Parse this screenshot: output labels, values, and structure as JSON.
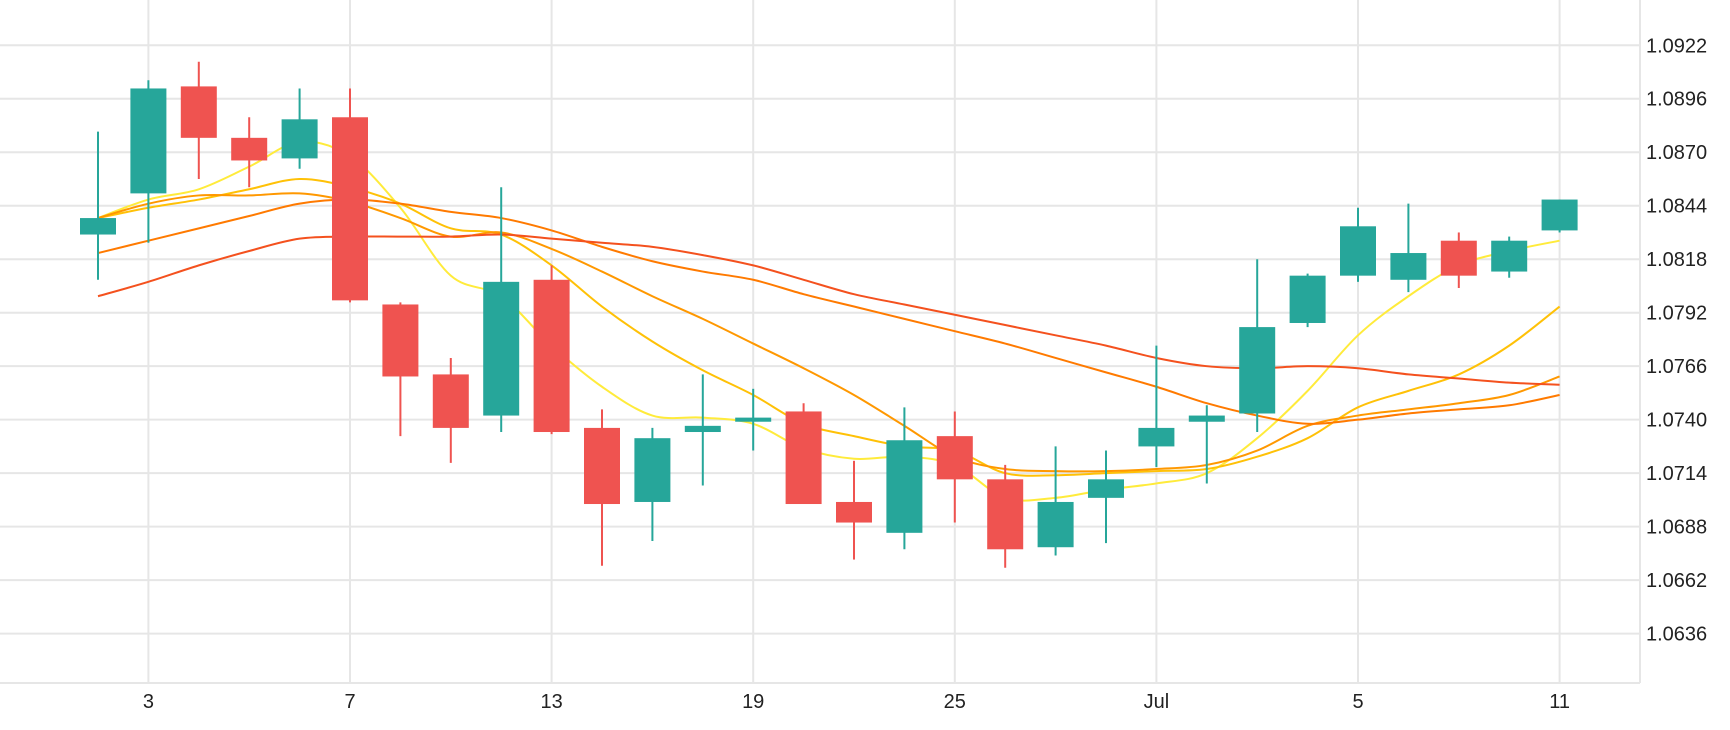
{
  "chart_data": {
    "type": "candlestick",
    "x_tick_labels": [
      "3",
      "7",
      "13",
      "19",
      "25",
      "Jul",
      "5",
      "11"
    ],
    "y_tick_labels": [
      "1.0922",
      "1.0896",
      "1.0870",
      "1.0844",
      "1.0818",
      "1.0792",
      "1.0766",
      "1.0740",
      "1.0714",
      "1.0688",
      "1.0662",
      "1.0636"
    ],
    "ylim": [
      1.0612,
      1.0944
    ],
    "grid": true,
    "colors": {
      "up": "#26a69a",
      "down": "#ef5350",
      "grid": "#e6e6e6",
      "text": "#222222"
    },
    "candles": [
      {
        "open": 1.083,
        "high": 1.088,
        "low": 1.0808,
        "close": 1.0838
      },
      {
        "open": 1.085,
        "high": 1.0905,
        "low": 1.0826,
        "close": 1.0901
      },
      {
        "open": 1.0902,
        "high": 1.0914,
        "low": 1.0857,
        "close": 1.0877
      },
      {
        "open": 1.0877,
        "high": 1.0887,
        "low": 1.0853,
        "close": 1.0866
      },
      {
        "open": 1.0867,
        "high": 1.0901,
        "low": 1.0862,
        "close": 1.0886
      },
      {
        "open": 1.0887,
        "high": 1.0901,
        "low": 1.0797,
        "close": 1.0798
      },
      {
        "open": 1.0796,
        "high": 1.0797,
        "low": 1.0732,
        "close": 1.0761
      },
      {
        "open": 1.0762,
        "high": 1.077,
        "low": 1.0719,
        "close": 1.0736
      },
      {
        "open": 1.0742,
        "high": 1.0853,
        "low": 1.0734,
        "close": 1.0807
      },
      {
        "open": 1.0808,
        "high": 1.0815,
        "low": 1.0733,
        "close": 1.0734
      },
      {
        "open": 1.0736,
        "high": 1.0745,
        "low": 1.0669,
        "close": 1.0699
      },
      {
        "open": 1.07,
        "high": 1.0736,
        "low": 1.0681,
        "close": 1.0731
      },
      {
        "open": 1.0734,
        "high": 1.0762,
        "low": 1.0708,
        "close": 1.0737
      },
      {
        "open": 1.0739,
        "high": 1.0755,
        "low": 1.0725,
        "close": 1.0741
      },
      {
        "open": 1.0744,
        "high": 1.0748,
        "low": 1.07,
        "close": 1.0699
      },
      {
        "open": 1.07,
        "high": 1.072,
        "low": 1.0672,
        "close": 1.069
      },
      {
        "open": 1.0685,
        "high": 1.0746,
        "low": 1.0677,
        "close": 1.073
      },
      {
        "open": 1.0732,
        "high": 1.0744,
        "low": 1.069,
        "close": 1.0711
      },
      {
        "open": 1.0711,
        "high": 1.0718,
        "low": 1.0668,
        "close": 1.0677
      },
      {
        "open": 1.0678,
        "high": 1.0727,
        "low": 1.0674,
        "close": 1.07
      },
      {
        "open": 1.0702,
        "high": 1.0725,
        "low": 1.068,
        "close": 1.0711
      },
      {
        "open": 1.0727,
        "high": 1.0776,
        "low": 1.0717,
        "close": 1.0736
      },
      {
        "open": 1.0739,
        "high": 1.0747,
        "low": 1.0709,
        "close": 1.0742
      },
      {
        "open": 1.0743,
        "high": 1.0818,
        "low": 1.0734,
        "close": 1.0785
      },
      {
        "open": 1.0787,
        "high": 1.0811,
        "low": 1.0785,
        "close": 1.081
      },
      {
        "open": 1.081,
        "high": 1.0843,
        "low": 1.0807,
        "close": 1.0834
      },
      {
        "open": 1.0808,
        "high": 1.0845,
        "low": 1.0802,
        "close": 1.0821
      },
      {
        "open": 1.0827,
        "high": 1.0831,
        "low": 1.0804,
        "close": 1.081
      },
      {
        "open": 1.0812,
        "high": 1.0829,
        "low": 1.0809,
        "close": 1.0827
      },
      {
        "open": 1.0832,
        "high": 1.0847,
        "low": 1.0831,
        "close": 1.0847
      }
    ],
    "x_tick_candle_index": [
      1,
      5,
      9,
      13,
      17,
      21,
      25,
      29
    ],
    "moving_averages": [
      {
        "color": "#ffeb3b",
        "start_index": 0,
        "values": [
          1.0838,
          1.0847,
          1.0852,
          1.0863,
          1.0875,
          1.0868,
          1.0843,
          1.081,
          1.08,
          1.0776,
          1.0756,
          1.0742,
          1.0741,
          1.0738,
          1.0726,
          1.0721,
          1.0722,
          1.0718,
          1.0702,
          1.0702,
          1.0706,
          1.0709,
          1.0714,
          1.0731,
          1.0754,
          1.0781,
          1.08,
          1.0815,
          1.0822,
          1.0827
        ]
      },
      {
        "color": "#ffc107",
        "start_index": 0,
        "values": [
          1.0838,
          1.0843,
          1.0847,
          1.0852,
          1.0857,
          1.0853,
          1.0845,
          1.0833,
          1.083,
          1.0815,
          1.0795,
          1.0778,
          1.0764,
          1.0752,
          1.0738,
          1.0732,
          1.0727,
          1.0725,
          1.0714,
          1.0713,
          1.0714,
          1.0715,
          1.0716,
          1.0722,
          1.0731,
          1.0746,
          1.0754,
          1.0762,
          1.0776,
          1.0795
        ]
      },
      {
        "color": "#ff9800",
        "start_index": 0,
        "values": [
          1.0838,
          1.0845,
          1.0849,
          1.0849,
          1.085,
          1.0846,
          1.0838,
          1.0829,
          1.0831,
          1.0823,
          1.0812,
          1.08,
          1.0789,
          1.0777,
          1.0765,
          1.0752,
          1.0737,
          1.0722,
          1.0716,
          1.0715,
          1.0715,
          1.0716,
          1.0718,
          1.0725,
          1.0737,
          1.0742,
          1.0745,
          1.0748,
          1.0752,
          1.0761
        ]
      },
      {
        "color": "#ff7a00",
        "start_index": 0,
        "values": [
          1.0821,
          1.0827,
          1.0833,
          1.0839,
          1.0845,
          1.0847,
          1.0845,
          1.0841,
          1.0838,
          1.0832,
          1.0824,
          1.0817,
          1.0812,
          1.0808,
          1.0801,
          1.0795,
          1.0789,
          1.0783,
          1.0777,
          1.077,
          1.0763,
          1.0756,
          1.0748,
          1.0742,
          1.0738,
          1.074,
          1.0743,
          1.0745,
          1.0747,
          1.0752
        ]
      },
      {
        "color": "#f4511e",
        "start_index": 0,
        "values": [
          1.08,
          1.0807,
          1.0815,
          1.0822,
          1.0828,
          1.0829,
          1.0829,
          1.0829,
          1.083,
          1.0828,
          1.0826,
          1.0824,
          1.082,
          1.0815,
          1.0808,
          1.0801,
          1.0796,
          1.0791,
          1.0786,
          1.0781,
          1.0776,
          1.077,
          1.0766,
          1.0765,
          1.0766,
          1.0765,
          1.0762,
          1.076,
          1.0758,
          1.0757
        ]
      }
    ]
  }
}
